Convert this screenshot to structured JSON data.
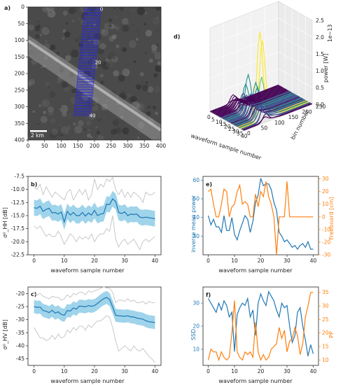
{
  "panels": {
    "a": {
      "label": "a)",
      "type": "image",
      "scalebar_label": "2 km",
      "xticks": [
        0,
        50,
        100,
        150,
        200,
        250,
        300,
        350,
        400
      ],
      "yticks": [
        0,
        50,
        100,
        150,
        200,
        250,
        300,
        350,
        400
      ],
      "xlim": [
        0,
        400
      ],
      "ylim": [
        400,
        0
      ],
      "track_labels": [
        {
          "text": "0",
          "x": 210,
          "y": 5
        },
        {
          "text": "20",
          "x": 195,
          "y": 165
        },
        {
          "text": "40",
          "x": 178,
          "y": 325
        }
      ],
      "track_color": "#2828d8"
    },
    "d": {
      "label": "d)",
      "type": "surface3d",
      "xlabel": "waveform sample number",
      "ylabel": "bin number",
      "zlabel": "power [W]",
      "zoffset": "1e−13",
      "xticks": [
        0,
        5,
        10,
        15,
        20,
        25,
        30,
        35,
        40
      ],
      "yticks": [
        0,
        50,
        100,
        150,
        200,
        250
      ],
      "zticks": [
        "0.0",
        "0.5",
        "1.0",
        "1.5",
        "2.0",
        "2.5"
      ]
    },
    "b": {
      "label": "b)",
      "xlabel": "waveform sample number",
      "ylabel": "σ⁰_HH [dB]",
      "yticks": [
        "-7.5",
        "-10.0",
        "-12.5",
        "-15.0",
        "-17.5",
        "-20.0",
        "-22.5"
      ],
      "xticks": [
        "0",
        "10",
        "20",
        "30",
        "40"
      ]
    },
    "c": {
      "label": "c)",
      "xlabel": "waveform sample number",
      "ylabel": "σ⁰_HV [dB]",
      "yticks": [
        "-20",
        "-25",
        "-30",
        "-35",
        "-40",
        "-45"
      ],
      "xticks": [
        "0",
        "10",
        "20",
        "30",
        "40"
      ]
    },
    "e": {
      "label": "e)",
      "xlabel": "waveform sample number",
      "ylabel_left": "inverse mean power",
      "ylabel_right": "Freeboard [cm]",
      "yticks_left": [
        "30",
        "40",
        "50",
        "60"
      ],
      "yticks_right": [
        "-30",
        "-20",
        "-10",
        "0",
        "10",
        "20",
        "30"
      ],
      "xticks": [
        "0",
        "10",
        "20",
        "30",
        "40"
      ]
    },
    "f": {
      "label": "f)",
      "xlabel": "waveform sample number",
      "ylabel_left": "SSD",
      "ylabel_right": "PP",
      "yticks_left": [
        "10",
        "20",
        "30"
      ],
      "yticks_right": [
        "10",
        "15",
        "20",
        "25",
        "30",
        "35"
      ],
      "xticks": [
        "0",
        "10",
        "20",
        "30",
        "40"
      ]
    }
  },
  "colors": {
    "blue": "#1f77b4",
    "orange": "#ff7f0e",
    "band": "#8ecde8",
    "gray": "#c8c8c8",
    "track": "#2828d8"
  },
  "chart_data": [
    {
      "panel": "b",
      "type": "line",
      "x": [
        0,
        1,
        2,
        3,
        4,
        5,
        6,
        7,
        8,
        9,
        10,
        11,
        12,
        13,
        14,
        15,
        16,
        17,
        18,
        19,
        20,
        21,
        22,
        23,
        24,
        25,
        26,
        27,
        28,
        29,
        30,
        31,
        32,
        33,
        34,
        35,
        36,
        37,
        38,
        39,
        40
      ],
      "ylim": [
        -22.5,
        -7.5
      ],
      "series": [
        {
          "role": "mean",
          "values": [
            -13.5,
            -13.6,
            -13.2,
            -14.2,
            -13.8,
            -13.6,
            -14.5,
            -14.4,
            -14.7,
            -14.3,
            -16.2,
            -14.2,
            -14.9,
            -14.4,
            -15.0,
            -15.0,
            -14.4,
            -15.1,
            -14.5,
            -14.9,
            -14.0,
            -15.0,
            -14.7,
            -14.6,
            -12.8,
            -12.9,
            -11.8,
            -12.3,
            -14.4,
            -14.6,
            -14.3,
            -15.0,
            -14.7,
            -14.8,
            -14.7,
            -15.3,
            -15.4,
            -15.3,
            -15.4,
            -15.5,
            -15.6
          ]
        },
        {
          "role": "band-upper",
          "values": [
            -12.0,
            -12.1,
            -11.7,
            -12.7,
            -12.3,
            -12.1,
            -13.0,
            -12.9,
            -13.2,
            -12.8,
            -14.7,
            -12.7,
            -13.4,
            -12.9,
            -13.5,
            -13.5,
            -12.9,
            -13.6,
            -13.0,
            -13.4,
            -12.5,
            -13.5,
            -13.2,
            -13.1,
            -11.3,
            -11.4,
            -10.3,
            -10.8,
            -12.9,
            -13.1,
            -12.8,
            -13.5,
            -13.2,
            -13.3,
            -13.2,
            -13.8,
            -13.9,
            -13.8,
            -13.9,
            -14.0,
            -14.1
          ]
        },
        {
          "role": "band-lower",
          "values": [
            -15.0,
            -15.1,
            -14.7,
            -15.7,
            -15.3,
            -15.1,
            -16.0,
            -15.9,
            -16.2,
            -15.8,
            -17.7,
            -15.7,
            -16.4,
            -15.9,
            -16.5,
            -16.5,
            -15.9,
            -16.6,
            -16.0,
            -16.4,
            -15.5,
            -16.5,
            -16.2,
            -16.1,
            -14.3,
            -14.4,
            -13.3,
            -13.8,
            -15.9,
            -16.1,
            -15.8,
            -16.5,
            -16.2,
            -16.3,
            -16.2,
            -16.8,
            -16.9,
            -16.8,
            -16.9,
            -17.0,
            -17.1
          ]
        },
        {
          "role": "max",
          "values": [
            -9.5,
            -10.0,
            -9.0,
            -11.0,
            -9.5,
            -10.5,
            -11.5,
            -10.5,
            -11.0,
            -11.5,
            -12.0,
            -10.5,
            -10.0,
            -12.0,
            -11.0,
            -10.0,
            -11.0,
            -10.0,
            -12.0,
            -11.0,
            -8.0,
            -10.0,
            -9.0,
            -9.5,
            -8.0,
            -8.5,
            -7.7,
            -10.0,
            -11.0,
            -10.0,
            -11.5,
            -10.5,
            -11.5,
            -10.5,
            -11.0,
            -11.5,
            -12.5,
            -10.5,
            -11.0,
            -11.0,
            -10.5
          ]
        },
        {
          "role": "min",
          "values": [
            -17.0,
            -17.5,
            -17.0,
            -18.0,
            -19.0,
            -18.5,
            -19.0,
            -19.0,
            -18.0,
            -19.0,
            -20.5,
            -19.5,
            -18.5,
            -19.0,
            -20.0,
            -19.0,
            -19.5,
            -19.0,
            -19.5,
            -18.5,
            -20.0,
            -19.0,
            -18.5,
            -18.5,
            -17.5,
            -18.0,
            -15.0,
            -19.5,
            -21.0,
            -20.0,
            -19.5,
            -20.5,
            -20.0,
            -19.5,
            -20.5,
            -21.5,
            -20.0,
            -19.5,
            -20.0,
            -19.5,
            -19.0
          ]
        }
      ]
    },
    {
      "panel": "c",
      "type": "line",
      "x": [
        0,
        1,
        2,
        3,
        4,
        5,
        6,
        7,
        8,
        9,
        10,
        11,
        12,
        13,
        14,
        15,
        16,
        17,
        18,
        19,
        20,
        21,
        22,
        23,
        24,
        25,
        26,
        27,
        28,
        29,
        30,
        31,
        32,
        33,
        34,
        35,
        36,
        37,
        38,
        39,
        40
      ],
      "ylim": [
        -47.5,
        -17.5
      ],
      "series": [
        {
          "role": "mean",
          "values": [
            -25.0,
            -25.3,
            -25.2,
            -26.5,
            -26.8,
            -27.3,
            -26.4,
            -27.5,
            -27.0,
            -28.0,
            -28.3,
            -26.5,
            -26.7,
            -25.5,
            -26.0,
            -24.8,
            -24.9,
            -25.1,
            -24.6,
            -24.9,
            -24.6,
            -23.8,
            -22.8,
            -22.0,
            -21.5,
            -22.3,
            -25.1,
            -28.3,
            -28.5,
            -28.6,
            -28.7,
            -28.5,
            -28.9,
            -29.0,
            -29.4,
            -29.6,
            -29.8,
            -30.4,
            -30.8,
            -30.9,
            -31.1
          ]
        },
        {
          "role": "band-upper",
          "values": [
            -22.5,
            -22.8,
            -22.7,
            -24.0,
            -24.3,
            -24.8,
            -23.9,
            -25.0,
            -24.5,
            -25.5,
            -25.8,
            -24.0,
            -24.2,
            -23.0,
            -23.5,
            -22.3,
            -22.4,
            -22.6,
            -22.1,
            -22.4,
            -22.1,
            -21.3,
            -20.3,
            -19.5,
            -19.0,
            -19.8,
            -22.6,
            -25.8,
            -26.0,
            -26.1,
            -26.2,
            -26.0,
            -26.4,
            -26.5,
            -26.9,
            -27.1,
            -27.3,
            -27.9,
            -28.3,
            -28.4,
            -28.6
          ]
        },
        {
          "role": "band-lower",
          "values": [
            -27.5,
            -27.8,
            -27.7,
            -29.0,
            -29.3,
            -29.8,
            -28.9,
            -30.0,
            -29.5,
            -30.5,
            -30.8,
            -29.0,
            -29.2,
            -28.0,
            -28.5,
            -27.3,
            -27.4,
            -27.6,
            -27.1,
            -27.4,
            -27.1,
            -26.3,
            -25.3,
            -24.5,
            -24.0,
            -24.8,
            -27.6,
            -30.8,
            -31.0,
            -31.1,
            -31.2,
            -31.0,
            -31.4,
            -31.5,
            -31.9,
            -32.1,
            -32.3,
            -32.9,
            -33.3,
            -33.4,
            -33.6
          ]
        },
        {
          "role": "max",
          "values": [
            -20.0,
            -20.5,
            -20.0,
            -21.0,
            -21.5,
            -22.0,
            -21.0,
            -21.5,
            -21.5,
            -22.5,
            -22.0,
            -20.5,
            -21.5,
            -20.0,
            -20.5,
            -19.5,
            -19.5,
            -20.5,
            -19.0,
            -19.5,
            -19.0,
            -18.5,
            -18.0,
            -17.5,
            -17.8,
            -18.0,
            -19.5,
            -23.5,
            -22.5,
            -22.5,
            -23.0,
            -22.0,
            -23.0,
            -22.5,
            -23.5,
            -23.5,
            -23.0,
            -24.0,
            -23.0,
            -23.5,
            -23.5
          ]
        },
        {
          "role": "min",
          "values": [
            -33.0,
            -35.0,
            -37.0,
            -37.0,
            -38.0,
            -37.5,
            -36.0,
            -37.5,
            -35.5,
            -37.0,
            -36.5,
            -34.0,
            -35.0,
            -33.0,
            -34.0,
            -32.5,
            -32.5,
            -34.0,
            -32.0,
            -33.0,
            -31.5,
            -30.5,
            -30.5,
            -29.5,
            -28.5,
            -29.0,
            -33.0,
            -38.0,
            -42.0,
            -41.0,
            -40.0,
            -41.0,
            -42.0,
            -40.0,
            -41.5,
            -42.0,
            -41.0,
            -42.5,
            -44.0,
            -45.0,
            -46.5
          ]
        }
      ]
    },
    {
      "panel": "e",
      "type": "line",
      "x": [
        0,
        1,
        2,
        3,
        4,
        5,
        6,
        7,
        8,
        9,
        10,
        11,
        12,
        13,
        14,
        15,
        16,
        17,
        18,
        19,
        20,
        21,
        22,
        23,
        24,
        25,
        26,
        27,
        28,
        29,
        30,
        31,
        32,
        33,
        34,
        35,
        36,
        37,
        38,
        39,
        40
      ],
      "ylim_left": [
        20,
        62
      ],
      "ylim_right": [
        -30,
        32
      ],
      "series": [
        {
          "name": "inverse mean power",
          "axis": "left",
          "values": [
            41,
            36,
            39,
            35,
            35,
            32,
            41,
            33,
            33,
            40,
            31,
            28,
            33,
            37,
            41,
            39,
            32,
            38,
            48,
            52,
            61,
            57,
            58,
            58,
            55,
            48,
            44,
            32,
            30,
            27,
            28,
            26,
            24,
            25,
            23,
            25,
            26,
            24,
            27,
            23,
            23
          ]
        },
        {
          "name": "Freeboard [cm]",
          "axis": "right",
          "values": [
            20,
            22,
            10,
            0,
            0,
            10,
            22,
            20,
            0,
            8,
            10,
            20,
            25,
            10,
            12,
            10,
            0,
            0,
            18,
            8,
            20,
            16,
            28,
            16,
            10,
            0,
            -30,
            0,
            0,
            0,
            28,
            0,
            0,
            0,
            0,
            0,
            0,
            0,
            0,
            0,
            0
          ]
        }
      ]
    },
    {
      "panel": "f",
      "type": "line",
      "x": [
        0,
        1,
        2,
        3,
        4,
        5,
        6,
        7,
        8,
        9,
        10,
        11,
        12,
        13,
        14,
        15,
        16,
        17,
        18,
        19,
        20,
        21,
        22,
        23,
        24,
        25,
        26,
        27,
        28,
        29,
        30,
        31,
        32,
        33,
        34,
        35,
        36,
        37,
        38,
        39,
        40
      ],
      "ylim_left": [
        3,
        37
      ],
      "ylim_right": [
        8,
        37
      ],
      "series": [
        {
          "name": "SSD",
          "axis": "left",
          "values": [
            32,
            30,
            28,
            26,
            30,
            27,
            31,
            29,
            24,
            26,
            9,
            25,
            28,
            30,
            29,
            32,
            24,
            27,
            16,
            30,
            34,
            31,
            29,
            35,
            33,
            31,
            27,
            24,
            30,
            28,
            29,
            20,
            13,
            16,
            26,
            28,
            20,
            14,
            7,
            12,
            8
          ]
        },
        {
          "name": "PP",
          "axis": "right",
          "values": [
            10,
            14,
            13,
            13,
            10,
            13,
            11,
            10,
            11,
            20,
            32,
            13,
            11,
            10,
            13,
            12,
            13,
            11,
            24,
            13,
            10,
            12,
            10,
            11,
            14,
            15,
            16,
            22,
            18,
            21,
            13,
            17,
            18,
            22,
            19,
            12,
            16,
            26,
            30,
            35,
            35
          ]
        }
      ]
    },
    {
      "panel": "d",
      "type": "surface3d",
      "x_range": [
        0,
        40
      ],
      "y_range": [
        0,
        250
      ],
      "zlim": [
        0,
        2.5
      ],
      "peaks": [
        {
          "x": 19,
          "y": 80,
          "z": 1.05
        },
        {
          "x": 16,
          "y": 80,
          "z": 0.75
        },
        {
          "x": 22,
          "y": 80,
          "z": 0.55
        },
        {
          "x": 28,
          "y": 80,
          "z": 0.95
        },
        {
          "x": 30,
          "y": 80,
          "z": 0.85
        },
        {
          "x": 33,
          "y": 80,
          "z": 2.45
        },
        {
          "x": 36,
          "y": 80,
          "z": 2.25
        },
        {
          "x": 35,
          "y": 80,
          "z": 1.2
        }
      ]
    }
  ]
}
